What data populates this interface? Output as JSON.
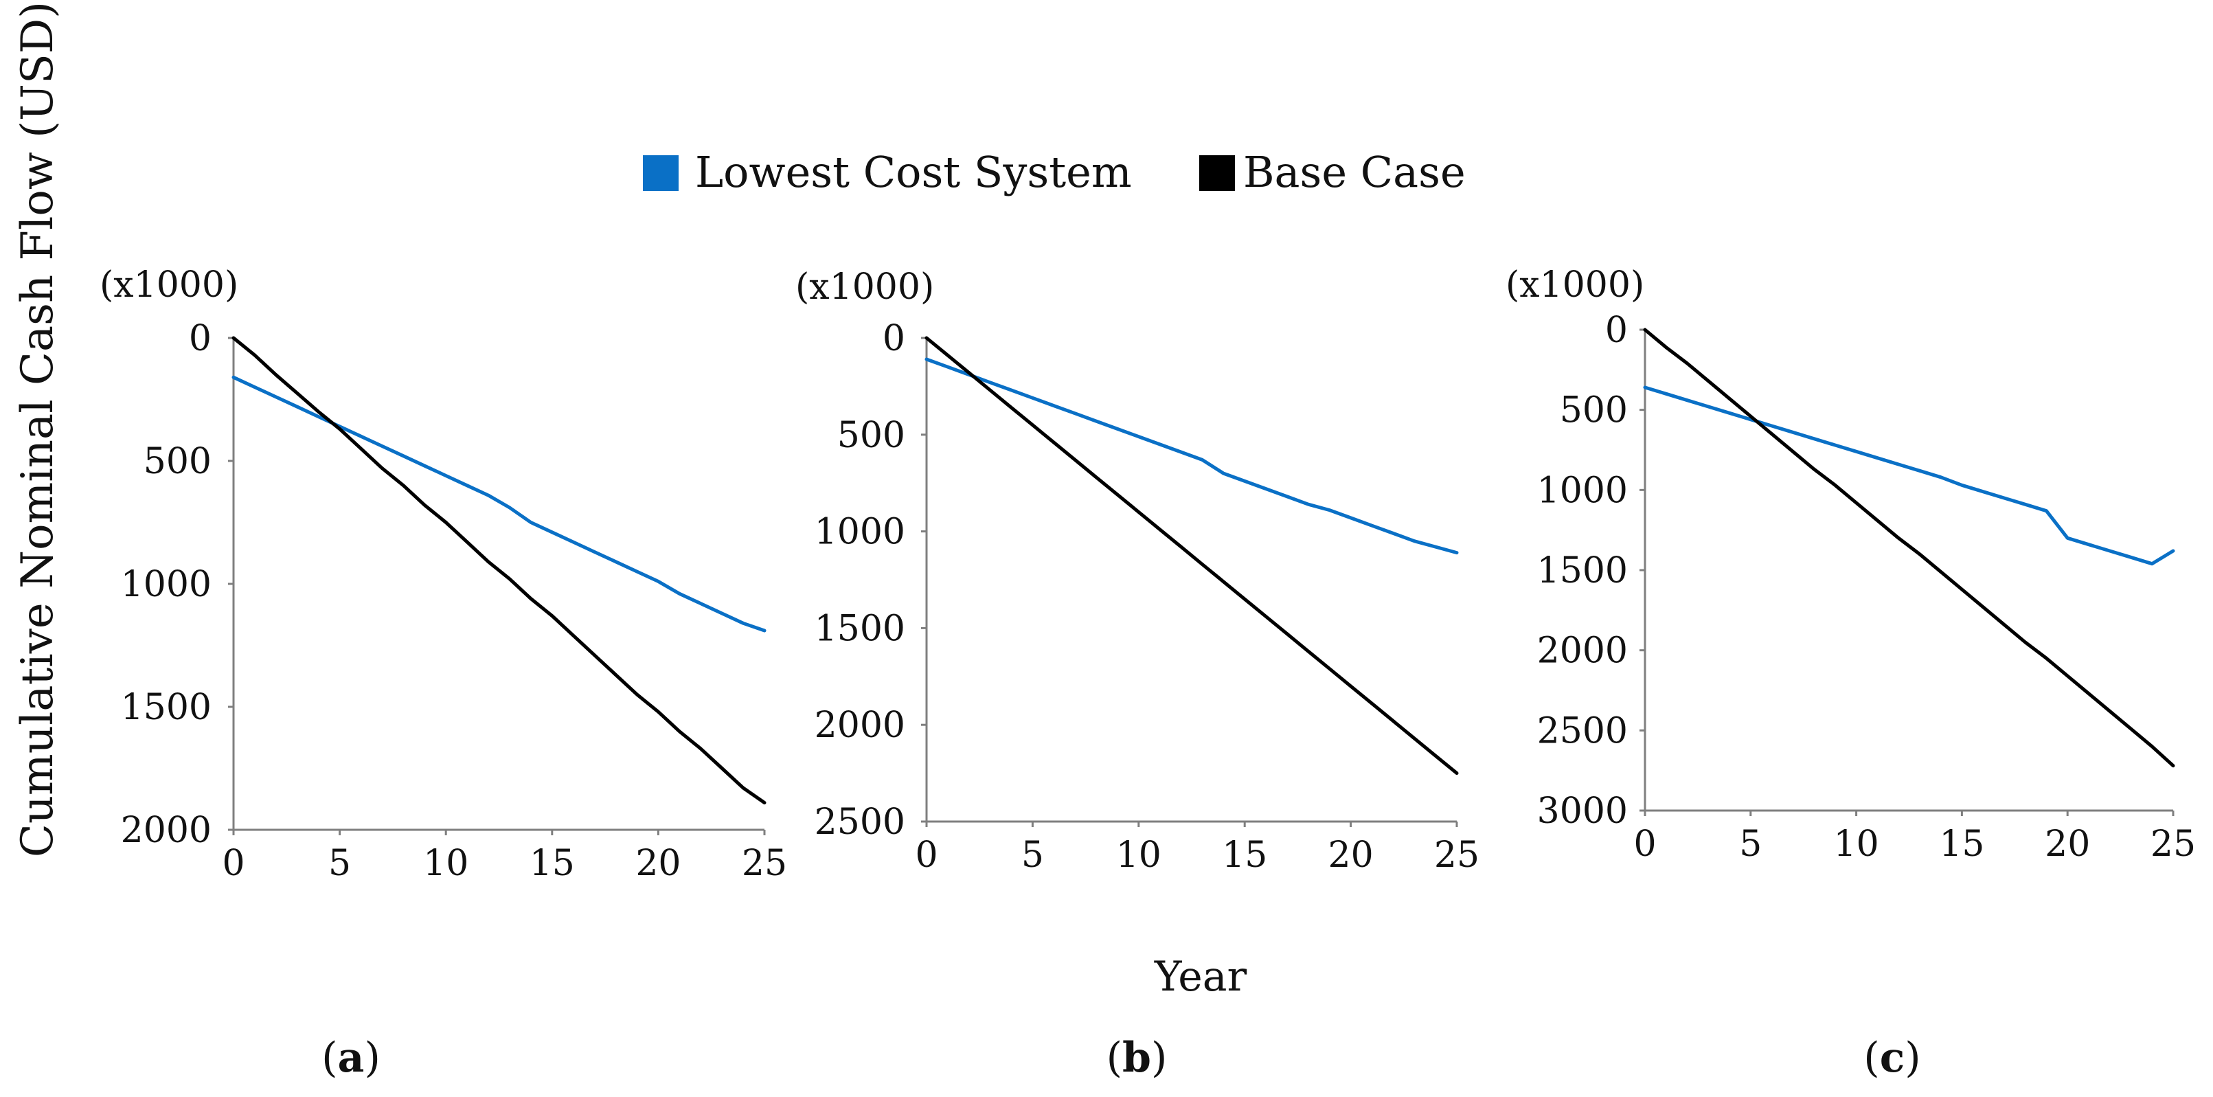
{
  "figure": {
    "ylabel": "Cumulative Nominal Cash Flow (USD)",
    "xlabel": "Year",
    "legend": [
      {
        "name": "Lowest Cost System",
        "color": "#0a70c6"
      },
      {
        "name": "Base Case",
        "color": "#000000"
      }
    ]
  },
  "chart_data": [
    {
      "type": "line",
      "panel_label": {
        "open": "(",
        "letter": "a",
        "close": ")"
      },
      "unit_label": "(x1000)",
      "x": [
        0,
        1,
        2,
        3,
        4,
        5,
        6,
        7,
        8,
        9,
        10,
        11,
        12,
        13,
        14,
        15,
        16,
        17,
        18,
        19,
        20,
        21,
        22,
        23,
        24,
        25
      ],
      "xticks": [
        0,
        5,
        10,
        15,
        20,
        25
      ],
      "xlim": [
        0,
        25
      ],
      "yticks": [
        0,
        500,
        1000,
        1500,
        2000
      ],
      "ylim": [
        0,
        2000
      ],
      "y_inverted": true,
      "series": [
        {
          "name": "Lowest Cost System",
          "color": "#0a70c6",
          "values": [
            160,
            200,
            240,
            280,
            320,
            360,
            400,
            440,
            480,
            520,
            560,
            600,
            640,
            690,
            750,
            790,
            830,
            870,
            910,
            950,
            990,
            1040,
            1080,
            1120,
            1160,
            1190
          ]
        },
        {
          "name": "Base Case",
          "color": "#000000",
          "values": [
            0,
            70,
            150,
            225,
            300,
            370,
            450,
            530,
            600,
            680,
            750,
            830,
            910,
            980,
            1060,
            1130,
            1210,
            1290,
            1370,
            1450,
            1520,
            1600,
            1670,
            1750,
            1830,
            1890
          ]
        }
      ]
    },
    {
      "type": "line",
      "panel_label": {
        "open": "(",
        "letter": "b",
        "close": ")"
      },
      "unit_label": "(x1000)",
      "x": [
        0,
        1,
        2,
        3,
        4,
        5,
        6,
        7,
        8,
        9,
        10,
        11,
        12,
        13,
        14,
        15,
        16,
        17,
        18,
        19,
        20,
        21,
        22,
        23,
        24,
        25
      ],
      "xticks": [
        0,
        5,
        10,
        15,
        20,
        25
      ],
      "xlim": [
        0,
        25
      ],
      "yticks": [
        0,
        500,
        1000,
        1500,
        2000,
        2500
      ],
      "ylim": [
        0,
        2500
      ],
      "y_inverted": true,
      "series": [
        {
          "name": "Lowest Cost System",
          "color": "#0a70c6",
          "values": [
            110,
            150,
            190,
            230,
            270,
            310,
            350,
            390,
            430,
            470,
            510,
            550,
            590,
            630,
            700,
            740,
            780,
            820,
            860,
            890,
            930,
            970,
            1010,
            1050,
            1080,
            1110
          ]
        },
        {
          "name": "Base Case",
          "color": "#000000",
          "values": [
            0,
            90,
            180,
            270,
            360,
            450,
            540,
            630,
            720,
            810,
            900,
            990,
            1080,
            1170,
            1260,
            1350,
            1440,
            1530,
            1620,
            1710,
            1800,
            1890,
            1980,
            2070,
            2160,
            2250
          ]
        }
      ]
    },
    {
      "type": "line",
      "panel_label": {
        "open": "(",
        "letter": "c",
        "close": ")"
      },
      "unit_label": "(x1000)",
      "x": [
        0,
        1,
        2,
        3,
        4,
        5,
        6,
        7,
        8,
        9,
        10,
        11,
        12,
        13,
        14,
        15,
        16,
        17,
        18,
        19,
        20,
        21,
        22,
        23,
        24,
        25
      ],
      "xticks": [
        0,
        5,
        10,
        15,
        20,
        25
      ],
      "xlim": [
        0,
        25
      ],
      "yticks": [
        0,
        500,
        1000,
        1500,
        2000,
        2500,
        3000
      ],
      "ylim": [
        0,
        3000
      ],
      "y_inverted": true,
      "series": [
        {
          "name": "Lowest Cost System",
          "color": "#0a70c6",
          "values": [
            360,
            400,
            440,
            480,
            520,
            560,
            600,
            640,
            680,
            720,
            760,
            800,
            840,
            880,
            920,
            970,
            1010,
            1050,
            1090,
            1130,
            1300,
            1340,
            1380,
            1420,
            1460,
            1380
          ]
        },
        {
          "name": "Base Case",
          "color": "#000000",
          "values": [
            0,
            110,
            210,
            320,
            430,
            540,
            650,
            760,
            870,
            970,
            1080,
            1190,
            1300,
            1400,
            1510,
            1620,
            1730,
            1840,
            1950,
            2050,
            2160,
            2270,
            2380,
            2490,
            2600,
            2720
          ]
        }
      ]
    }
  ]
}
